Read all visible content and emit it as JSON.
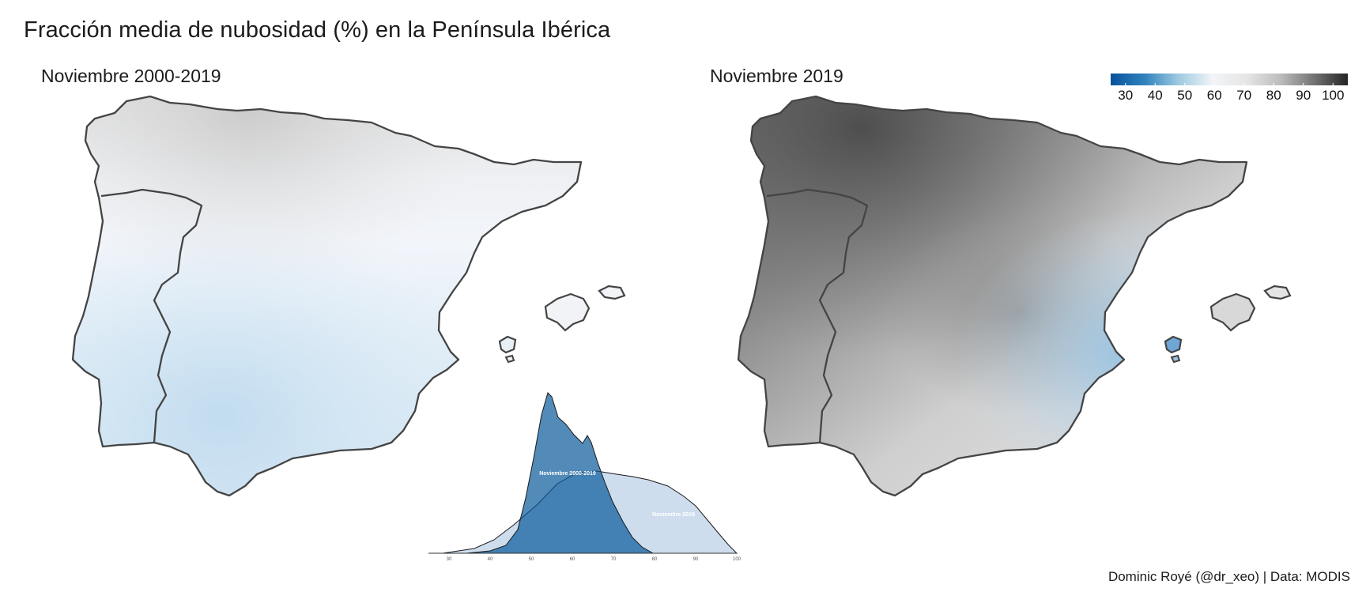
{
  "title": "Fracción media de nubosidad (%) en la Península Ibérica",
  "panels": [
    {
      "label": "Noviembre 2000-2019"
    },
    {
      "label": "Noviembre 2019"
    }
  ],
  "colorbar": {
    "ticks": [
      "30",
      "40",
      "50",
      "60",
      "70",
      "80",
      "90",
      "100"
    ],
    "values": [
      30,
      40,
      50,
      60,
      70,
      80,
      90,
      100
    ],
    "range": [
      25,
      105
    ],
    "colors": [
      "#08519c",
      "#3182bd",
      "#9ecae1",
      "#f2f4f8",
      "#e6e6e6",
      "#bdbdbd",
      "#737373",
      "#252525"
    ]
  },
  "density_chart": {
    "series": [
      {
        "name": "Noviembre 2000-2019",
        "color": "#08589a"
      },
      {
        "name": "Noviembre 2019",
        "color": "#c6d7ea"
      }
    ],
    "ticks": [
      "30",
      "40",
      "50",
      "60",
      "70",
      "80",
      "90",
      "100"
    ],
    "tick_values": [
      30,
      40,
      50,
      60,
      70,
      80,
      90,
      100
    ],
    "xlim": [
      25,
      100
    ]
  },
  "credit": "Dominic Royé (@dr_xeo) | Data: MODIS"
}
